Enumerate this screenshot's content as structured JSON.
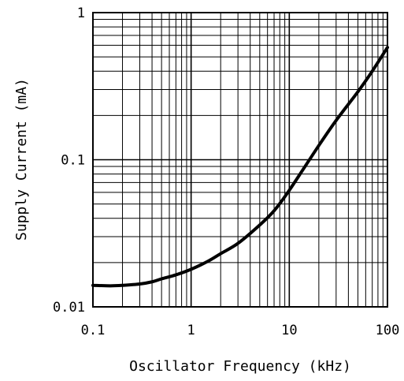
{
  "chart_data": {
    "type": "line",
    "title": "",
    "xlabel": "Oscillator Frequency (kHz)",
    "ylabel": "Supply Current (mA)",
    "x_scale": "log",
    "y_scale": "log",
    "xlim": [
      0.1,
      100
    ],
    "ylim": [
      0.01,
      1
    ],
    "x_ticks": [
      0.1,
      1,
      10,
      100
    ],
    "x_tick_labels": [
      "0.1",
      "1",
      "10",
      "100"
    ],
    "y_ticks": [
      0.01,
      0.1,
      1
    ],
    "y_tick_labels": [
      "0.01",
      "0.1",
      "1"
    ],
    "grid": true,
    "series": [
      {
        "x": [
          0.1,
          0.15,
          0.2,
          0.3,
          0.4,
          0.5,
          0.7,
          1,
          1.5,
          2,
          3,
          5,
          7,
          10,
          20,
          30,
          50,
          70,
          100
        ],
        "y": [
          0.014,
          0.0139,
          0.014,
          0.0143,
          0.0148,
          0.0155,
          0.0165,
          0.018,
          0.0205,
          0.023,
          0.027,
          0.036,
          0.045,
          0.062,
          0.125,
          0.185,
          0.29,
          0.4,
          0.58
        ]
      }
    ],
    "colors": {
      "line": "#000000",
      "grid": "#000000",
      "background": "#ffffff"
    }
  }
}
